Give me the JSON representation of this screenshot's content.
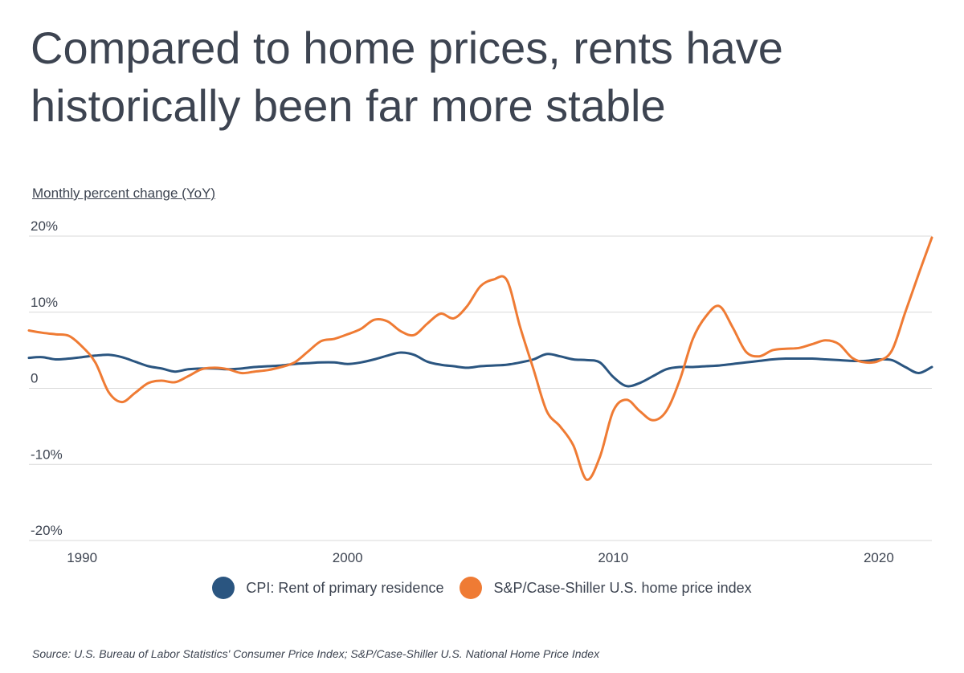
{
  "title_lines": [
    "Compared to home prices, rents have",
    "historically been far more stable"
  ],
  "source": "Source:  U.S. Bureau of Labor Statistics' Consumer Price Index; S&P/Case-Shiller U.S. National Home Price Index",
  "colors": {
    "rent": "#2a5580",
    "home": "#ef7b34",
    "grid": "#d9d9d9",
    "text": "#3d4451"
  },
  "chart_data": {
    "type": "line",
    "title": "Compared to home prices, rents have historically been far more stable",
    "ylabel": "Monthly percent change (YoY)",
    "xlabel": "",
    "xlim": [
      1988,
      2022
    ],
    "ylim": [
      -20,
      20
    ],
    "x_ticks": [
      1990,
      2000,
      2010,
      2020
    ],
    "y_ticks": [
      {
        "value": 20,
        "label": "20%"
      },
      {
        "value": 10,
        "label": "10%"
      },
      {
        "value": 0,
        "label": "0"
      },
      {
        "value": -10,
        "label": "-10%"
      },
      {
        "value": -20,
        "label": "-20%"
      }
    ],
    "grid": true,
    "legend": "bottom",
    "series": [
      {
        "name": "CPI: Rent of primary residence",
        "color": "#2a5580",
        "x": [
          1988.0,
          1988.5,
          1989.0,
          1989.5,
          1990.0,
          1990.5,
          1991.0,
          1991.5,
          1992.0,
          1992.5,
          1993.0,
          1993.5,
          1994.0,
          1994.5,
          1995.0,
          1995.5,
          1996.0,
          1996.5,
          1997.0,
          1997.5,
          1998.0,
          1998.5,
          1999.0,
          1999.5,
          2000.0,
          2000.5,
          2001.0,
          2001.5,
          2002.0,
          2002.5,
          2003.0,
          2003.5,
          2004.0,
          2004.5,
          2005.0,
          2005.5,
          2006.0,
          2006.5,
          2007.0,
          2007.5,
          2008.0,
          2008.5,
          2009.0,
          2009.5,
          2010.0,
          2010.5,
          2011.0,
          2011.5,
          2012.0,
          2012.5,
          2013.0,
          2013.5,
          2014.0,
          2014.5,
          2015.0,
          2015.5,
          2016.0,
          2016.5,
          2017.0,
          2017.5,
          2018.0,
          2018.5,
          2019.0,
          2019.5,
          2020.0,
          2020.5,
          2021.0,
          2021.5,
          2022.0
        ],
        "values": [
          4.0,
          4.1,
          3.8,
          3.9,
          4.1,
          4.3,
          4.4,
          4.1,
          3.5,
          2.9,
          2.6,
          2.2,
          2.5,
          2.6,
          2.6,
          2.5,
          2.6,
          2.8,
          2.9,
          3.0,
          3.2,
          3.3,
          3.4,
          3.4,
          3.2,
          3.4,
          3.8,
          4.3,
          4.7,
          4.4,
          3.5,
          3.1,
          2.9,
          2.7,
          2.9,
          3.0,
          3.1,
          3.4,
          3.8,
          4.5,
          4.2,
          3.8,
          3.7,
          3.4,
          1.5,
          0.3,
          0.7,
          1.6,
          2.5,
          2.8,
          2.8,
          2.9,
          3.0,
          3.2,
          3.4,
          3.6,
          3.8,
          3.9,
          3.9,
          3.9,
          3.8,
          3.7,
          3.6,
          3.6,
          3.8,
          3.7,
          2.8,
          2.0,
          2.8
        ]
      },
      {
        "name": "S&P/Case-Shiller U.S. home price index",
        "color": "#ef7b34",
        "x": [
          1988.0,
          1988.5,
          1989.0,
          1989.5,
          1990.0,
          1990.5,
          1991.0,
          1991.5,
          1992.0,
          1992.5,
          1993.0,
          1993.5,
          1994.0,
          1994.5,
          1995.0,
          1995.5,
          1996.0,
          1996.5,
          1997.0,
          1997.5,
          1998.0,
          1998.5,
          1999.0,
          1999.5,
          2000.0,
          2000.5,
          2001.0,
          2001.5,
          2002.0,
          2002.5,
          2003.0,
          2003.5,
          2004.0,
          2004.5,
          2005.0,
          2005.5,
          2006.0,
          2006.5,
          2007.0,
          2007.5,
          2008.0,
          2008.5,
          2009.0,
          2009.5,
          2010.0,
          2010.5,
          2011.0,
          2011.5,
          2012.0,
          2012.5,
          2013.0,
          2013.5,
          2014.0,
          2014.5,
          2015.0,
          2015.5,
          2016.0,
          2016.5,
          2017.0,
          2017.5,
          2018.0,
          2018.5,
          2019.0,
          2019.5,
          2020.0,
          2020.5,
          2021.0,
          2021.5,
          2022.0
        ],
        "values": [
          7.6,
          7.3,
          7.1,
          6.9,
          5.5,
          3.4,
          -0.5,
          -1.8,
          -0.6,
          0.7,
          1.0,
          0.8,
          1.6,
          2.5,
          2.7,
          2.5,
          2.0,
          2.2,
          2.4,
          2.8,
          3.4,
          4.8,
          6.2,
          6.5,
          7.1,
          7.8,
          9.0,
          8.8,
          7.5,
          7.0,
          8.5,
          9.8,
          9.2,
          10.8,
          13.4,
          14.3,
          14.2,
          8.0,
          2.5,
          -3.0,
          -5.0,
          -7.5,
          -12.0,
          -9.0,
          -3.0,
          -1.5,
          -3.0,
          -4.2,
          -3.0,
          1.0,
          6.5,
          9.5,
          10.8,
          8.0,
          4.8,
          4.2,
          5.0,
          5.2,
          5.3,
          5.8,
          6.3,
          5.8,
          4.0,
          3.4,
          3.6,
          5.0,
          10.0,
          15.0,
          19.8
        ]
      }
    ]
  }
}
